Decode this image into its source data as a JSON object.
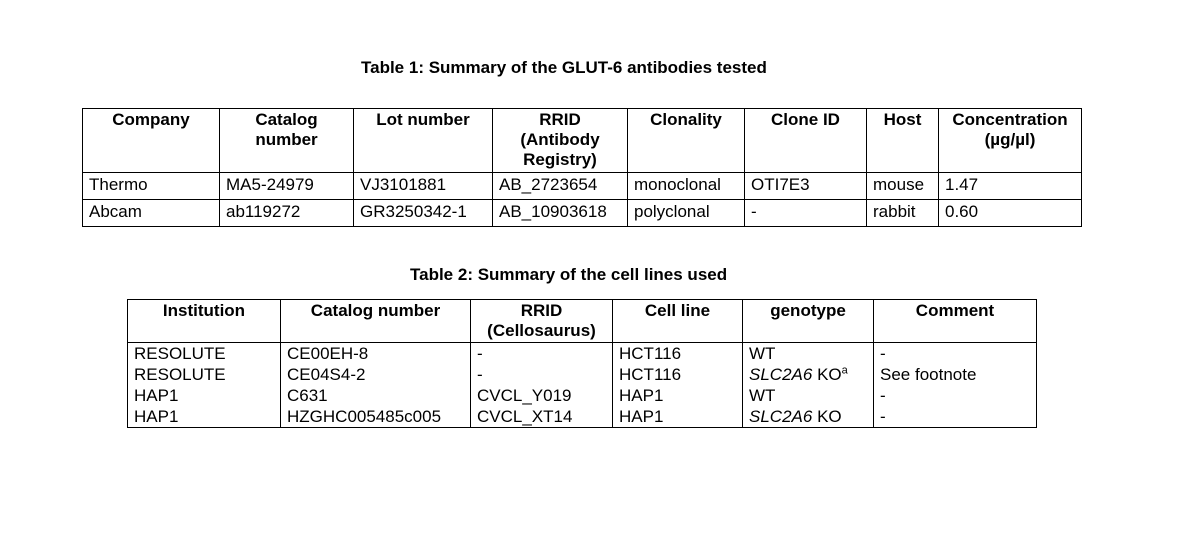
{
  "table1": {
    "caption": "Table 1: Summary of the GLUT-6 antibodies tested",
    "headers": [
      "Company",
      "Catalog number",
      "Lot number",
      "RRID (Antibody Registry)",
      "Clonality",
      "Clone ID",
      "Host",
      "Concentration (µg/µl)"
    ],
    "rows": [
      [
        "Thermo",
        "MA5-24979",
        "VJ3101881",
        "AB_2723654",
        "monoclonal",
        "OTI7E3",
        "mouse",
        "1.47"
      ],
      [
        "Abcam",
        "ab119272",
        "GR3250342-1",
        "AB_10903618",
        "polyclonal",
        "-",
        "rabbit",
        "0.60"
      ]
    ]
  },
  "table2": {
    "caption": "Table 2: Summary of the cell lines used",
    "headers": [
      "Institution",
      "Catalog number",
      "RRID (Cellosaurus)",
      "Cell line",
      "genotype",
      "Comment"
    ],
    "rows": [
      {
        "institution": "RESOLUTE",
        "catalog": "CE00EH-8",
        "rrid": "-",
        "cell_line": "HCT116",
        "genotype_gene": "",
        "genotype": "WT",
        "footnote_mark": "",
        "comment": "-"
      },
      {
        "institution": "RESOLUTE",
        "catalog": "CE04S4-2",
        "rrid": "-",
        "cell_line": "HCT116",
        "genotype_gene": "SLC2A6",
        "genotype": "KO",
        "footnote_mark": "a",
        "comment": "See footnote"
      },
      {
        "institution": "HAP1",
        "catalog": "C631",
        "rrid": "CVCL_Y019",
        "cell_line": "HAP1",
        "genotype_gene": "",
        "genotype": "WT",
        "footnote_mark": "",
        "comment": "-"
      },
      {
        "institution": "HAP1",
        "catalog": "HZGHC005485c005",
        "rrid": "CVCL_XT14",
        "cell_line": "HAP1",
        "genotype_gene": "SLC2A6",
        "genotype": "KO",
        "footnote_mark": "",
        "comment": "-"
      }
    ]
  }
}
